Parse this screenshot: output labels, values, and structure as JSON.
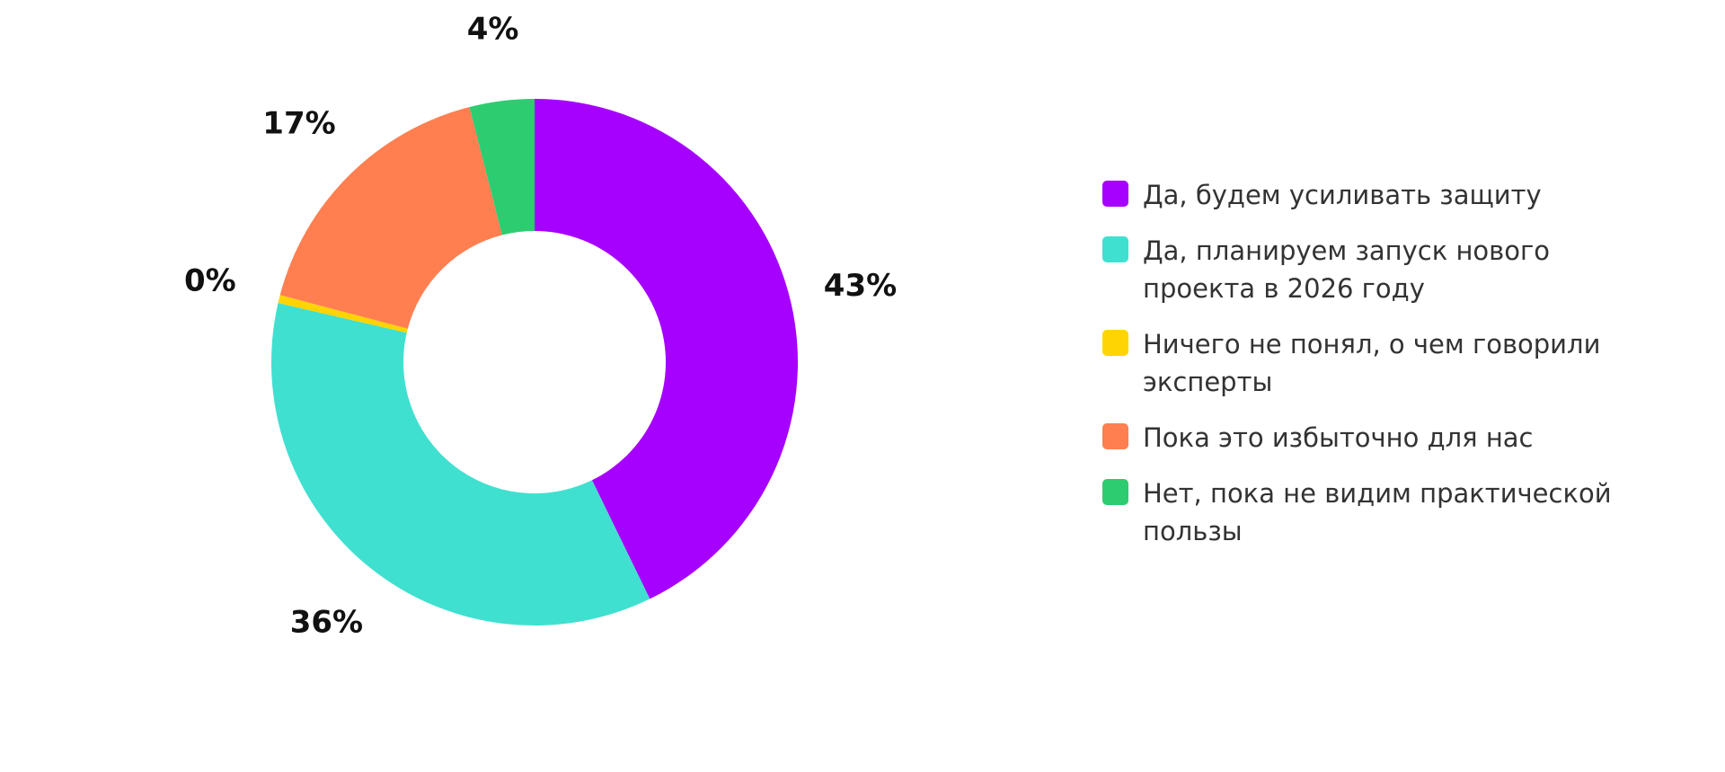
{
  "chart_data": {
    "type": "pie",
    "variant": "donut",
    "categories": [
      "Да, будем усиливать защиту",
      "Да, планируем запуск нового проекта в 2026 году",
      "Ничего не понял, о чем говорили эксперты",
      "Пока это избыточно для нас",
      "Нет, пока не видим практической пользы"
    ],
    "values": [
      43,
      36,
      0.5,
      17,
      4
    ],
    "labels": [
      "43%",
      "36%",
      "0%",
      "17%",
      "4%"
    ],
    "colors": [
      "#a600ff",
      "#40e0d0",
      "#ffd400",
      "#ff7f50",
      "#2ecc71"
    ],
    "legend": "right"
  }
}
